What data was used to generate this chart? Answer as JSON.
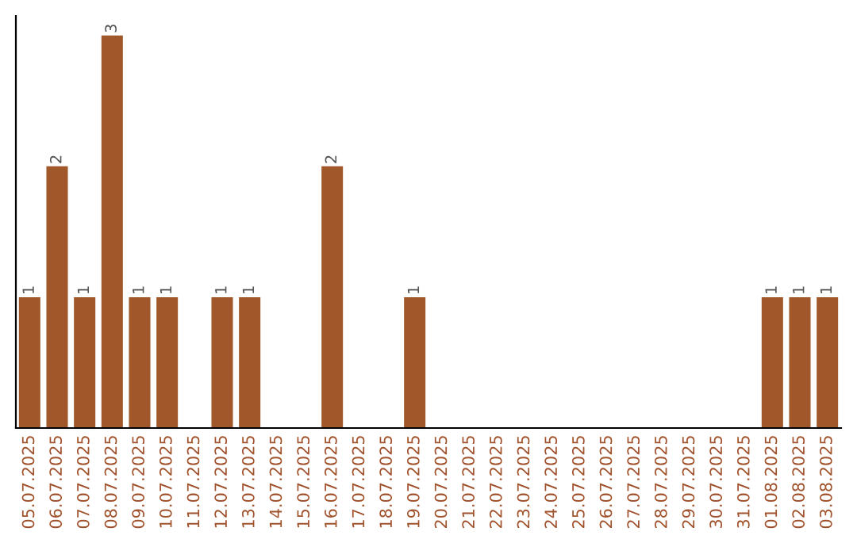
{
  "chart_data": {
    "type": "bar",
    "categories": [
      "05.07.2025",
      "06.07.2025",
      "07.07.2025",
      "08.07.2025",
      "09.07.2025",
      "10.07.2025",
      "11.07.2025",
      "12.07.2025",
      "13.07.2025",
      "14.07.2025",
      "15.07.2025",
      "16.07.2025",
      "17.07.2025",
      "18.07.2025",
      "19.07.2025",
      "20.07.2025",
      "21.07.2025",
      "22.07.2025",
      "23.07.2025",
      "24.07.2025",
      "25.07.2025",
      "26.07.2025",
      "27.07.2025",
      "28.07.2025",
      "29.07.2025",
      "30.07.2025",
      "31.07.2025",
      "01.08.2025",
      "02.08.2025",
      "03.08.2025"
    ],
    "values": [
      1,
      2,
      1,
      3,
      1,
      1,
      0,
      1,
      1,
      0,
      0,
      2,
      0,
      0,
      1,
      0,
      0,
      0,
      0,
      0,
      0,
      0,
      0,
      0,
      0,
      0,
      0,
      1,
      1,
      1
    ],
    "value_labels": [
      "1",
      "2",
      "1",
      "3",
      "1",
      "1",
      null,
      "1",
      "1",
      null,
      null,
      "2",
      null,
      null,
      "1",
      null,
      null,
      null,
      null,
      null,
      null,
      null,
      null,
      null,
      null,
      null,
      null,
      "1",
      "1",
      "1"
    ],
    "color": "#a0582a",
    "tick_labels": "x",
    "grid": false,
    "legend": false
  }
}
